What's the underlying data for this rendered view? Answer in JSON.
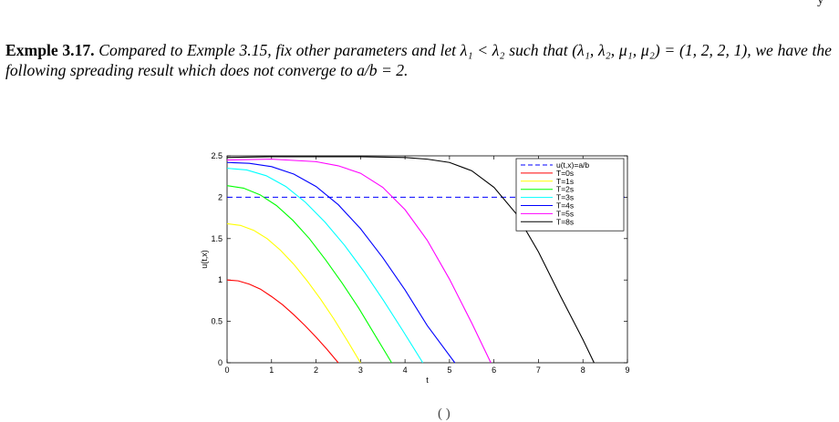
{
  "page": {
    "top_fragment_right": "y",
    "bottom_fragment": "( )",
    "example_heading": "Exmple 3.17.",
    "example_text": "Compared to Exmple 3.15, fix other parameters and let λ₁ < λ₂ such that (λ₁, λ₂, μ₁, μ₂) = (1, 2, 2, 1), we have the following spreading result which does not converge to a/b = 2."
  },
  "chart_data": {
    "type": "line",
    "xlabel": "t",
    "ylabel": "u(t,x)",
    "xlim": [
      0,
      9
    ],
    "ylim": [
      0,
      2.5
    ],
    "xticks": [
      0,
      1,
      2,
      3,
      4,
      5,
      6,
      7,
      8,
      9
    ],
    "yticks": [
      0,
      0.5,
      1,
      1.5,
      2,
      2.5
    ],
    "xtick_labels": [
      "0",
      "1",
      "2",
      "3",
      "4",
      "5",
      "6",
      "7",
      "8",
      "9"
    ],
    "ytick_labels": [
      "0",
      "0.5",
      "1",
      "1.5",
      "2",
      "2.5"
    ],
    "legend_position": "top-right",
    "grid": false,
    "reference_line": {
      "name": "u(t,x)=a/b",
      "y": 2,
      "color": "#0000ff",
      "dashed": true
    },
    "series": [
      {
        "name": "T=0s",
        "color": "#ff0000",
        "x": [
          0,
          0.25,
          0.5,
          0.75,
          1.0,
          1.25,
          1.5,
          1.75,
          2.0,
          2.25,
          2.5
        ],
        "y": [
          1.0,
          0.99,
          0.95,
          0.89,
          0.8,
          0.7,
          0.58,
          0.45,
          0.31,
          0.16,
          0.0
        ]
      },
      {
        "name": "T=1s",
        "color": "#ffff00",
        "x": [
          0,
          0.3,
          0.6,
          0.9,
          1.2,
          1.5,
          1.8,
          2.1,
          2.4,
          2.7,
          3.0
        ],
        "y": [
          1.68,
          1.66,
          1.6,
          1.5,
          1.36,
          1.19,
          0.99,
          0.77,
          0.53,
          0.27,
          0.0
        ]
      },
      {
        "name": "T=2s",
        "color": "#00ff00",
        "x": [
          0,
          0.37,
          0.74,
          1.11,
          1.48,
          1.85,
          2.22,
          2.59,
          2.96,
          3.33,
          3.7
        ],
        "y": [
          2.14,
          2.11,
          2.03,
          1.9,
          1.72,
          1.5,
          1.24,
          0.96,
          0.66,
          0.33,
          0.0
        ]
      },
      {
        "name": "T=3s",
        "color": "#00ffff",
        "x": [
          0,
          0.44,
          0.88,
          1.32,
          1.76,
          2.2,
          2.64,
          3.08,
          3.52,
          3.96,
          4.4
        ],
        "y": [
          2.35,
          2.33,
          2.26,
          2.13,
          1.94,
          1.7,
          1.42,
          1.1,
          0.75,
          0.38,
          0.0
        ]
      },
      {
        "name": "T=4s",
        "color": "#0000ff",
        "x": [
          0,
          0.5,
          1.0,
          1.5,
          2.0,
          2.5,
          3.0,
          3.5,
          4.0,
          4.5,
          5.12
        ],
        "y": [
          2.42,
          2.41,
          2.37,
          2.28,
          2.13,
          1.91,
          1.62,
          1.27,
          0.88,
          0.45,
          0.0
        ]
      },
      {
        "name": "T=5s",
        "color": "#ff00ff",
        "x": [
          0,
          1.0,
          2.0,
          2.5,
          3.0,
          3.5,
          4.0,
          4.5,
          5.0,
          5.5,
          5.93
        ],
        "y": [
          2.45,
          2.46,
          2.43,
          2.38,
          2.29,
          2.12,
          1.85,
          1.48,
          1.01,
          0.48,
          0.0
        ]
      },
      {
        "name": "T=8s",
        "color": "#000000",
        "x": [
          0,
          1.0,
          2.0,
          3.0,
          4.0,
          4.5,
          5.0,
          5.5,
          6.0,
          6.5,
          7.0,
          7.5,
          8.0,
          8.25
        ],
        "y": [
          2.48,
          2.49,
          2.49,
          2.49,
          2.48,
          2.46,
          2.42,
          2.32,
          2.12,
          1.8,
          1.34,
          0.8,
          0.28,
          0.0
        ]
      }
    ]
  }
}
